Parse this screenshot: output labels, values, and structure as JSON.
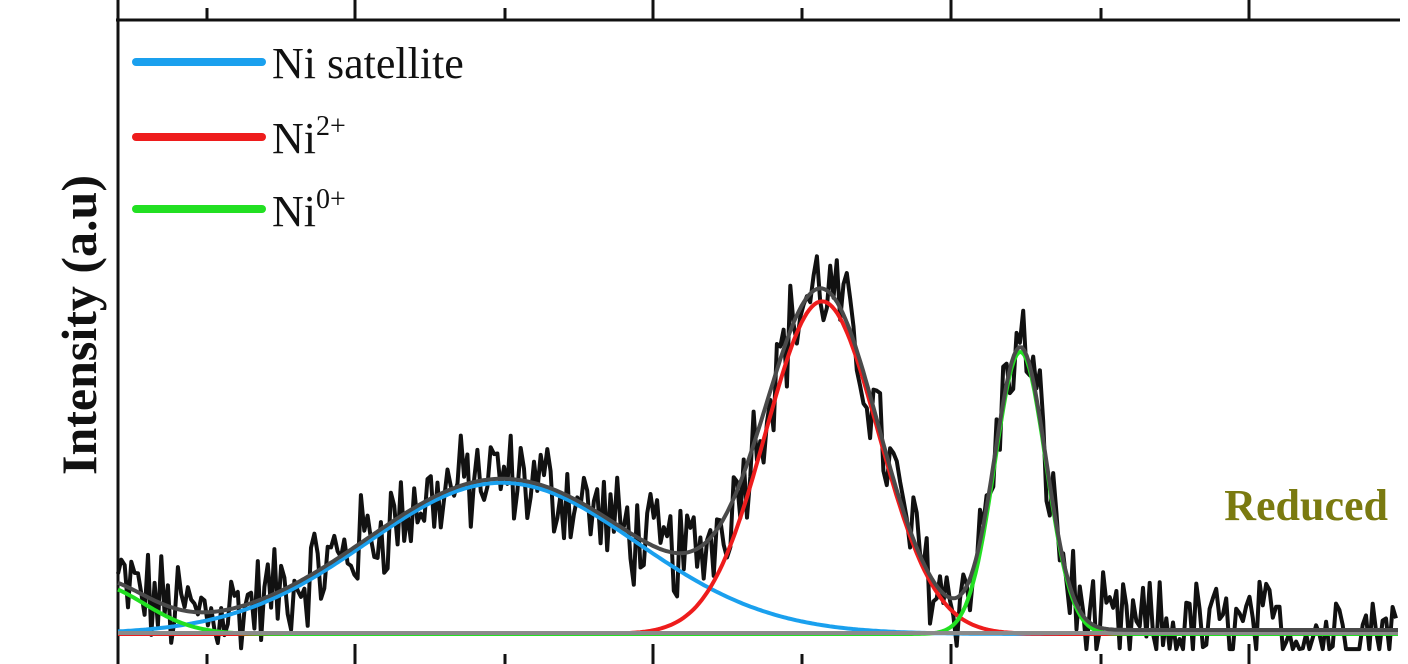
{
  "chart_data": {
    "type": "line",
    "title": "",
    "xlabel": "",
    "ylabel": "Intensity (a.u)",
    "xlim": [
      0,
      1000
    ],
    "ylim": [
      0,
      1
    ],
    "grid": false,
    "legend_position": "top-left",
    "annotation": {
      "text": "Reduced",
      "color": "#7a7a10"
    },
    "colors": {
      "raw": "#111111",
      "envelope": "#4a4a4a",
      "baseline": "#8a8a8a",
      "ni_satellite": "#1aa0ee",
      "ni2": "#ee1c1c",
      "ni0": "#22e022"
    },
    "legend": [
      {
        "key": "ni_satellite",
        "base": "Ni satellite",
        "sup": ""
      },
      {
        "key": "ni2",
        "base": "Ni",
        "sup": "2+"
      },
      {
        "key": "ni0",
        "base": "Ni",
        "sup": "0+"
      }
    ],
    "components": {
      "ni_satellite": {
        "center": 300,
        "amplitude": 0.3,
        "width": 105
      },
      "ni2": {
        "center": 550,
        "amplitude": 0.66,
        "width": 44
      },
      "ni0": {
        "center": 705,
        "amplitude": 0.56,
        "width": 20
      },
      "tail": {
        "center": -20,
        "amplitude": 0.1,
        "width": 40
      }
    },
    "raw_noise_amplitude": 0.09
  }
}
